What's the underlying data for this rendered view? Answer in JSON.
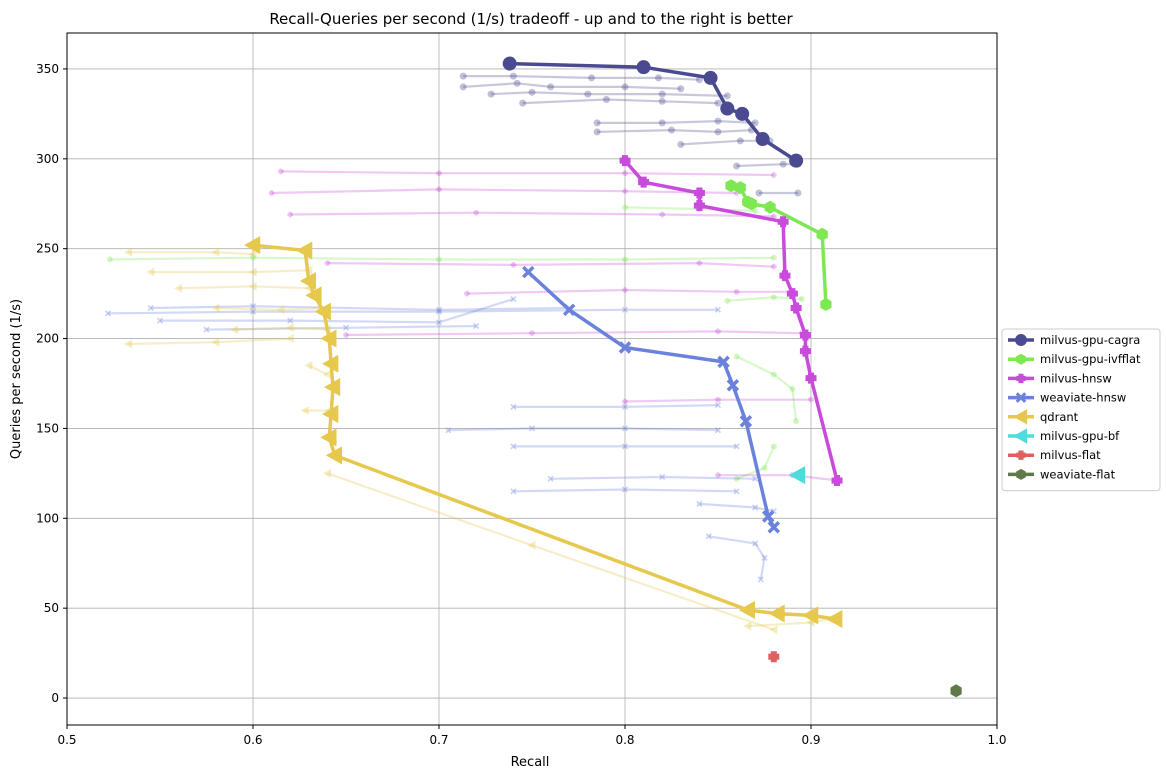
{
  "chart_data": {
    "type": "line",
    "title": "Recall-Queries per second (1/s) tradeoff - up and to the right is better",
    "xlabel": "Recall",
    "ylabel": "Queries per second (1/s)",
    "xlim": [
      0.5,
      1.0
    ],
    "ylim": [
      -15,
      370
    ],
    "xticks": [
      0.5,
      0.6,
      0.7,
      0.8,
      0.9,
      1.0
    ],
    "xtick_labels": [
      "0.5",
      "0.6",
      "0.7",
      "0.8",
      "0.9",
      "1.0"
    ],
    "yticks": [
      0,
      50,
      100,
      150,
      200,
      250,
      300,
      350
    ],
    "ytick_labels": [
      "0",
      "50",
      "100",
      "150",
      "200",
      "250",
      "300",
      "350"
    ],
    "grid": true,
    "legend_position": "right-outside",
    "series": [
      {
        "name": "milvus-gpu-cagra",
        "color": "#4a4a90",
        "marker": "circle",
        "points": [
          [
            0.738,
            353
          ],
          [
            0.81,
            351
          ],
          [
            0.846,
            345
          ],
          [
            0.855,
            328
          ],
          [
            0.863,
            325
          ],
          [
            0.874,
            311
          ],
          [
            0.892,
            299
          ]
        ],
        "faded": [
          [
            [
              0.713,
              346
            ],
            [
              0.74,
              346
            ],
            [
              0.782,
              345
            ],
            [
              0.818,
              345
            ],
            [
              0.84,
              344
            ]
          ],
          [
            [
              0.713,
              340
            ],
            [
              0.742,
              342
            ],
            [
              0.76,
              340
            ],
            [
              0.8,
              340
            ],
            [
              0.83,
              339
            ]
          ],
          [
            [
              0.728,
              336
            ],
            [
              0.75,
              337
            ],
            [
              0.78,
              336
            ],
            [
              0.82,
              336
            ],
            [
              0.855,
              335
            ]
          ],
          [
            [
              0.745,
              331
            ],
            [
              0.79,
              333
            ],
            [
              0.82,
              332
            ],
            [
              0.85,
              331
            ]
          ],
          [
            [
              0.785,
              320
            ],
            [
              0.82,
              320
            ],
            [
              0.85,
              321
            ],
            [
              0.87,
              320
            ]
          ],
          [
            [
              0.785,
              315
            ],
            [
              0.825,
              316
            ],
            [
              0.85,
              315
            ],
            [
              0.868,
              316
            ]
          ],
          [
            [
              0.83,
              308
            ],
            [
              0.862,
              310
            ],
            [
              0.878,
              310
            ]
          ],
          [
            [
              0.86,
              296
            ],
            [
              0.885,
              297
            ],
            [
              0.893,
              297
            ]
          ],
          [
            [
              0.872,
              281
            ],
            [
              0.893,
              281
            ]
          ]
        ]
      },
      {
        "name": "milvus-gpu-ivfflat",
        "color": "#7de852",
        "marker": "hexagon",
        "points": [
          [
            0.857,
            285
          ],
          [
            0.862,
            284
          ],
          [
            0.866,
            276
          ],
          [
            0.868,
            275
          ],
          [
            0.878,
            273
          ],
          [
            0.906,
            258
          ],
          [
            0.908,
            219
          ]
        ],
        "faded": [
          [
            [
              0.523,
              244
            ],
            [
              0.6,
              245
            ],
            [
              0.7,
              244
            ],
            [
              0.8,
              244
            ],
            [
              0.88,
              245
            ]
          ],
          [
            [
              0.8,
              273
            ],
            [
              0.84,
              272
            ],
            [
              0.87,
              271
            ]
          ],
          [
            [
              0.855,
              221
            ],
            [
              0.88,
              223
            ],
            [
              0.895,
              222
            ]
          ],
          [
            [
              0.86,
              190
            ],
            [
              0.88,
              180
            ],
            [
              0.89,
              172
            ],
            [
              0.892,
              154
            ]
          ],
          [
            [
              0.86,
              122
            ],
            [
              0.875,
              128
            ],
            [
              0.88,
              140
            ]
          ]
        ]
      },
      {
        "name": "milvus-hnsw",
        "color": "#c94bdb",
        "marker": "plus",
        "points": [
          [
            0.8,
            299
          ],
          [
            0.81,
            287
          ],
          [
            0.84,
            281
          ],
          [
            0.84,
            274
          ],
          [
            0.885,
            265
          ],
          [
            0.886,
            235
          ],
          [
            0.89,
            225
          ],
          [
            0.892,
            217
          ],
          [
            0.897,
            202
          ],
          [
            0.897,
            193
          ],
          [
            0.9,
            178
          ],
          [
            0.914,
            121
          ]
        ],
        "faded": [
          [
            [
              0.615,
              293
            ],
            [
              0.7,
              292
            ],
            [
              0.8,
              292
            ],
            [
              0.88,
              291
            ]
          ],
          [
            [
              0.61,
              281
            ],
            [
              0.7,
              283
            ],
            [
              0.8,
              282
            ],
            [
              0.86,
              281
            ]
          ],
          [
            [
              0.62,
              269
            ],
            [
              0.72,
              270
            ],
            [
              0.82,
              269
            ],
            [
              0.88,
              268
            ]
          ],
          [
            [
              0.64,
              242
            ],
            [
              0.74,
              241
            ],
            [
              0.84,
              242
            ],
            [
              0.88,
              240
            ]
          ],
          [
            [
              0.715,
              225
            ],
            [
              0.8,
              227
            ],
            [
              0.86,
              226
            ],
            [
              0.89,
              226
            ]
          ],
          [
            [
              0.65,
              202
            ],
            [
              0.75,
              203
            ],
            [
              0.85,
              204
            ],
            [
              0.895,
              203
            ]
          ],
          [
            [
              0.8,
              165
            ],
            [
              0.85,
              166
            ],
            [
              0.9,
              166
            ]
          ],
          [
            [
              0.85,
              124
            ],
            [
              0.89,
              124
            ],
            [
              0.915,
              121
            ]
          ]
        ]
      },
      {
        "name": "weaviate-hnsw",
        "color": "#6b82dc",
        "marker": "x",
        "points": [
          [
            0.748,
            237
          ],
          [
            0.77,
            216
          ],
          [
            0.8,
            195
          ],
          [
            0.853,
            187
          ],
          [
            0.858,
            174
          ],
          [
            0.865,
            154
          ],
          [
            0.877,
            101
          ],
          [
            0.88,
            95
          ]
        ],
        "faded": [
          [
            [
              0.522,
              214
            ],
            [
              0.6,
              215
            ],
            [
              0.7,
              215
            ],
            [
              0.8,
              216
            ],
            [
              0.85,
              216
            ]
          ],
          [
            [
              0.545,
              217
            ],
            [
              0.6,
              218
            ],
            [
              0.7,
              216
            ],
            [
              0.77,
              217
            ]
          ],
          [
            [
              0.55,
              210
            ],
            [
              0.62,
              210
            ],
            [
              0.7,
              209
            ],
            [
              0.74,
              222
            ]
          ],
          [
            [
              0.575,
              205
            ],
            [
              0.65,
              206
            ],
            [
              0.72,
              207
            ]
          ],
          [
            [
              0.705,
              149
            ],
            [
              0.75,
              150
            ],
            [
              0.8,
              150
            ],
            [
              0.85,
              149
            ]
          ],
          [
            [
              0.74,
              162
            ],
            [
              0.8,
              162
            ],
            [
              0.85,
              163
            ]
          ],
          [
            [
              0.74,
              140
            ],
            [
              0.8,
              140
            ],
            [
              0.86,
              140
            ]
          ],
          [
            [
              0.74,
              115
            ],
            [
              0.8,
              116
            ],
            [
              0.86,
              115
            ]
          ],
          [
            [
              0.76,
              122
            ],
            [
              0.82,
              123
            ],
            [
              0.87,
              122
            ]
          ],
          [
            [
              0.84,
              108
            ],
            [
              0.87,
              106
            ],
            [
              0.88,
              104
            ]
          ],
          [
            [
              0.845,
              90
            ],
            [
              0.87,
              86
            ],
            [
              0.875,
              78
            ],
            [
              0.873,
              66
            ]
          ]
        ]
      },
      {
        "name": "qdrant",
        "color": "#e6c84c",
        "marker": "triangle-left",
        "points": [
          [
            0.6,
            252
          ],
          [
            0.628,
            249
          ],
          [
            0.63,
            232
          ],
          [
            0.633,
            224
          ],
          [
            0.638,
            215
          ],
          [
            0.641,
            200
          ],
          [
            0.642,
            186
          ],
          [
            0.643,
            173
          ],
          [
            0.642,
            158
          ],
          [
            0.641,
            145
          ],
          [
            0.644,
            135
          ],
          [
            0.866,
            49
          ],
          [
            0.882,
            47
          ],
          [
            0.9,
            46
          ],
          [
            0.913,
            44
          ]
        ],
        "faded": [
          [
            [
              0.533,
              248
            ],
            [
              0.58,
              248
            ],
            [
              0.6,
              247
            ]
          ],
          [
            [
              0.545,
              237
            ],
            [
              0.6,
              237
            ],
            [
              0.63,
              238
            ]
          ],
          [
            [
              0.56,
              228
            ],
            [
              0.6,
              229
            ],
            [
              0.63,
              228
            ]
          ],
          [
            [
              0.58,
              217
            ],
            [
              0.615,
              216
            ],
            [
              0.64,
              217
            ]
          ],
          [
            [
              0.59,
              205
            ],
            [
              0.62,
              206
            ],
            [
              0.64,
              205
            ]
          ],
          [
            [
              0.533,
              197
            ],
            [
              0.58,
              198
            ],
            [
              0.62,
              200
            ]
          ],
          [
            [
              0.63,
              185
            ],
            [
              0.64,
              180
            ]
          ],
          [
            [
              0.628,
              160
            ],
            [
              0.641,
              160
            ]
          ],
          [
            [
              0.64,
              125
            ],
            [
              0.75,
              85
            ],
            [
              0.88,
              38
            ]
          ],
          [
            [
              0.866,
              40
            ],
            [
              0.9,
              42
            ],
            [
              0.91,
              44
            ]
          ]
        ]
      },
      {
        "name": "milvus-gpu-bf",
        "color": "#4ddbdb",
        "marker": "triangle-left",
        "points": [
          [
            0.893,
            124
          ]
        ],
        "faded": []
      },
      {
        "name": "milvus-flat",
        "color": "#e06060",
        "marker": "plus",
        "points": [
          [
            0.88,
            23
          ]
        ],
        "faded": []
      },
      {
        "name": "weaviate-flat",
        "color": "#5f7a48",
        "marker": "hexagon",
        "points": [
          [
            0.978,
            4
          ]
        ],
        "faded": []
      }
    ]
  }
}
